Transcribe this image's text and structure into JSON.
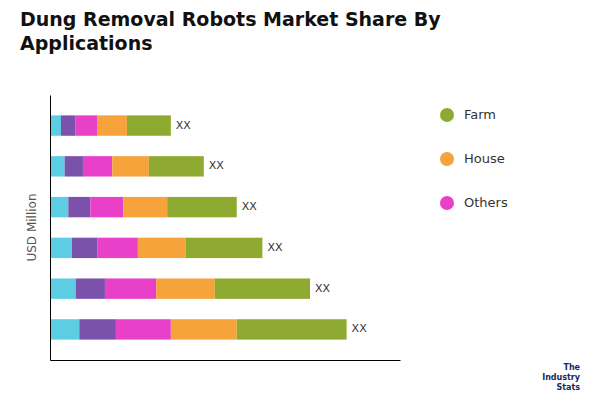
{
  "chart_data": {
    "type": "bar",
    "orientation": "horizontal",
    "stacked": true,
    "title": "Dung Removal Robots Market Share By\nApplications",
    "ylabel": "USD Million",
    "categories": [
      null,
      null,
      null,
      null,
      null,
      null
    ],
    "series": [
      {
        "color": "#5DCDE3",
        "values": [
          0.08,
          0.07,
          0.06,
          0.05,
          0.04,
          0.03
        ]
      },
      {
        "color": "#7B52AB",
        "values": [
          0.1,
          0.08,
          0.07,
          0.06,
          0.05,
          0.04
        ]
      },
      {
        "name": "Others",
        "color": "#E840C8",
        "values": [
          0.15,
          0.14,
          0.11,
          0.09,
          0.08,
          0.06
        ]
      },
      {
        "name": "House",
        "color": "#F5A33A",
        "values": [
          0.18,
          0.16,
          0.13,
          0.12,
          0.1,
          0.08
        ]
      },
      {
        "name": "Farm",
        "color": "#8FAA30",
        "values": [
          0.3,
          0.26,
          0.21,
          0.19,
          0.15,
          0.12
        ]
      }
    ],
    "xlim": [
      0,
      0.9558
    ],
    "xticks": [],
    "tick_labels": false,
    "grid": false,
    "annotations": [
      {
        "text": "XX",
        "category": 0
      },
      {
        "text": "XX",
        "category": 1
      },
      {
        "text": "XX",
        "category": 2
      },
      {
        "text": "XX",
        "category": 3
      },
      {
        "text": "XX",
        "category": 4
      },
      {
        "text": "XX",
        "category": 5
      },
      {
        "text": "The\nIndustry\nStats"
      }
    ]
  }
}
